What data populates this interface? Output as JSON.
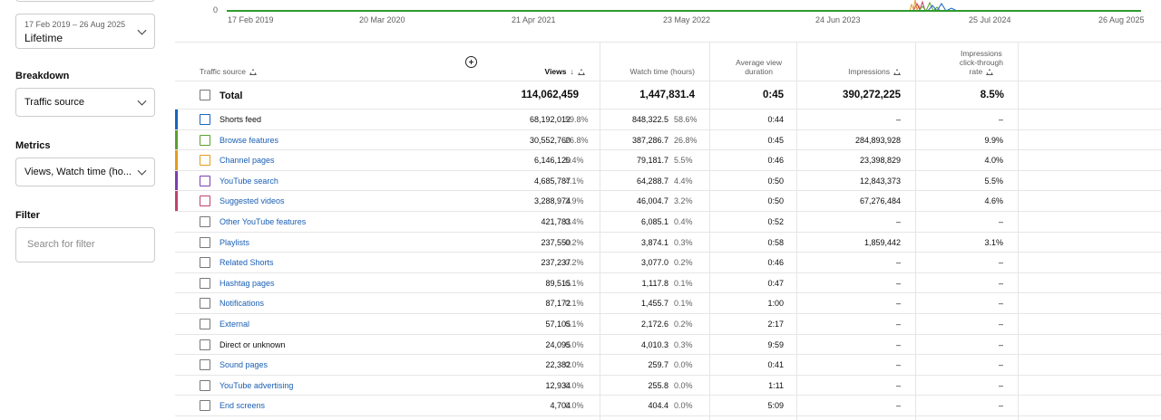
{
  "sidebar": {
    "date_range": "17 Feb 2019 – 26 Aug 2025",
    "date_label": "Lifetime",
    "breakdown_heading": "Breakdown",
    "breakdown_value": "Traffic source",
    "metrics_heading": "Metrics",
    "metrics_value": "Views, Watch time (ho...",
    "filter_heading": "Filter",
    "filter_placeholder": "Search for filter"
  },
  "chart": {
    "y_zero": "0",
    "x_ticks": [
      "17 Feb 2019",
      "20 Mar 2020",
      "21 Apr 2021",
      "23 May 2022",
      "24 Jun 2023",
      "25 Jul 2024",
      "26 Aug 2025"
    ],
    "line_color": "#2e9b2e"
  },
  "table": {
    "headers": {
      "source": "Traffic source",
      "views": "Views",
      "watch_time": "Watch time (hours)",
      "avg_view_1": "Average view",
      "avg_view_2": "duration",
      "impressions": "Impressions",
      "ctr_1": "Impressions",
      "ctr_2": "click-through",
      "ctr_3": "rate"
    },
    "total": {
      "name": "Total",
      "views": "114,062,459",
      "watch": "1,447,831.4",
      "avg": "0:45",
      "impr": "390,272,225",
      "ctr": "8.5%"
    },
    "rows": [
      {
        "name": "Shorts feed",
        "views": "68,192,012",
        "views_pct": "59.8%",
        "watch": "848,322.5",
        "watch_pct": "58.6%",
        "avg": "0:44",
        "impr": "–",
        "ctr": "–",
        "color": "#1565c0",
        "link": false
      },
      {
        "name": "Browse features",
        "views": "30,552,760",
        "views_pct": "26.8%",
        "watch": "387,286.7",
        "watch_pct": "26.8%",
        "avg": "0:45",
        "impr": "284,893,928",
        "ctr": "9.9%",
        "color": "#5aa02c",
        "link": true
      },
      {
        "name": "Channel pages",
        "views": "6,146,120",
        "views_pct": "5.4%",
        "watch": "79,181.7",
        "watch_pct": "5.5%",
        "avg": "0:46",
        "impr": "23,398,829",
        "ctr": "4.0%",
        "color": "#e59b1e",
        "link": true
      },
      {
        "name": "YouTube search",
        "views": "4,685,787",
        "views_pct": "4.1%",
        "watch": "64,288.7",
        "watch_pct": "4.4%",
        "avg": "0:50",
        "impr": "12,843,373",
        "ctr": "5.5%",
        "color": "#7b3fb0",
        "link": true
      },
      {
        "name": "Suggested videos",
        "views": "3,288,974",
        "views_pct": "2.9%",
        "watch": "46,004.7",
        "watch_pct": "3.2%",
        "avg": "0:50",
        "impr": "67,276,484",
        "ctr": "4.6%",
        "color": "#c2416e",
        "link": true
      },
      {
        "name": "Other YouTube features",
        "views": "421,783",
        "views_pct": "0.4%",
        "watch": "6,085.1",
        "watch_pct": "0.4%",
        "avg": "0:52",
        "impr": "–",
        "ctr": "–",
        "color": "",
        "link": true
      },
      {
        "name": "Playlists",
        "views": "237,550",
        "views_pct": "0.2%",
        "watch": "3,874.1",
        "watch_pct": "0.3%",
        "avg": "0:58",
        "impr": "1,859,442",
        "ctr": "3.1%",
        "color": "",
        "link": true
      },
      {
        "name": "Related Shorts",
        "views": "237,237",
        "views_pct": "0.2%",
        "watch": "3,077.0",
        "watch_pct": "0.2%",
        "avg": "0:46",
        "impr": "–",
        "ctr": "–",
        "color": "",
        "link": true
      },
      {
        "name": "Hashtag pages",
        "views": "89,515",
        "views_pct": "0.1%",
        "watch": "1,117.8",
        "watch_pct": "0.1%",
        "avg": "0:47",
        "impr": "–",
        "ctr": "–",
        "color": "",
        "link": true
      },
      {
        "name": "Notifications",
        "views": "87,172",
        "views_pct": "0.1%",
        "watch": "1,455.7",
        "watch_pct": "0.1%",
        "avg": "1:00",
        "impr": "–",
        "ctr": "–",
        "color": "",
        "link": true
      },
      {
        "name": "External",
        "views": "57,105",
        "views_pct": "0.1%",
        "watch": "2,172.6",
        "watch_pct": "0.2%",
        "avg": "2:17",
        "impr": "–",
        "ctr": "–",
        "color": "",
        "link": true
      },
      {
        "name": "Direct or unknown",
        "views": "24,095",
        "views_pct": "0.0%",
        "watch": "4,010.3",
        "watch_pct": "0.3%",
        "avg": "9:59",
        "impr": "–",
        "ctr": "–",
        "color": "",
        "link": false
      },
      {
        "name": "Sound pages",
        "views": "22,382",
        "views_pct": "0.0%",
        "watch": "259.7",
        "watch_pct": "0.0%",
        "avg": "0:41",
        "impr": "–",
        "ctr": "–",
        "color": "",
        "link": true
      },
      {
        "name": "YouTube advertising",
        "views": "12,934",
        "views_pct": "0.0%",
        "watch": "255.8",
        "watch_pct": "0.0%",
        "avg": "1:11",
        "impr": "–",
        "ctr": "–",
        "color": "",
        "link": true
      },
      {
        "name": "End screens",
        "views": "4,704",
        "views_pct": "0.0%",
        "watch": "404.4",
        "watch_pct": "0.0%",
        "avg": "5:09",
        "impr": "–",
        "ctr": "–",
        "color": "",
        "link": true
      }
    ]
  }
}
